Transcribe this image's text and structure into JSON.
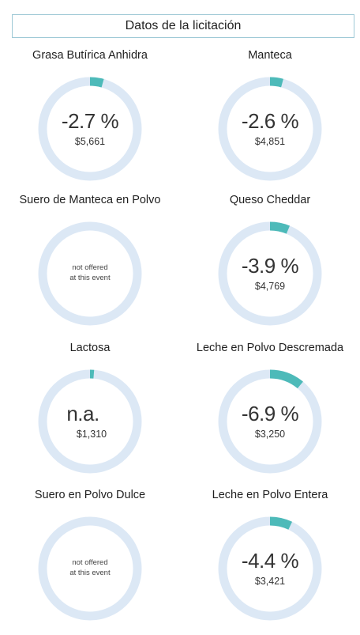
{
  "header": {
    "title": "Datos de la licitación"
  },
  "colors": {
    "track": "#dce8f5",
    "fill": "#4dbab9"
  },
  "chart_data": [
    {
      "type": "pie",
      "title": "Grasa Butírica Anhidra",
      "change_label": "-2.7 %",
      "price": "$5,661",
      "values": [
        2.7,
        97.3
      ]
    },
    {
      "type": "pie",
      "title": "Manteca",
      "change_label": "-2.6 %",
      "price": "$4,851",
      "values": [
        2.6,
        97.4
      ]
    },
    {
      "type": "pie",
      "title": "Suero de Manteca en Polvo",
      "status_line1": "not offered",
      "status_line2": "at this event",
      "values": [
        0,
        100
      ]
    },
    {
      "type": "pie",
      "title": "Queso Cheddar",
      "change_label": "-3.9 %",
      "price": "$4,769",
      "values": [
        3.9,
        96.1
      ]
    },
    {
      "type": "pie",
      "title": "Lactosa",
      "change_label": "n.a.",
      "price": "$1,310",
      "values": [
        0.8,
        99.2
      ]
    },
    {
      "type": "pie",
      "title": "Leche en Polvo Descremada",
      "change_label": "-6.9 %",
      "price": "$3,250",
      "values": [
        6.9,
        93.1
      ]
    },
    {
      "type": "pie",
      "title": "Suero en Polvo Dulce",
      "status_line1": "not offered",
      "status_line2": "at this event",
      "values": [
        0,
        100
      ]
    },
    {
      "type": "pie",
      "title": "Leche en Polvo Entera",
      "change_label": "-4.4 %",
      "price": "$3,421",
      "values": [
        4.4,
        95.6
      ]
    }
  ]
}
